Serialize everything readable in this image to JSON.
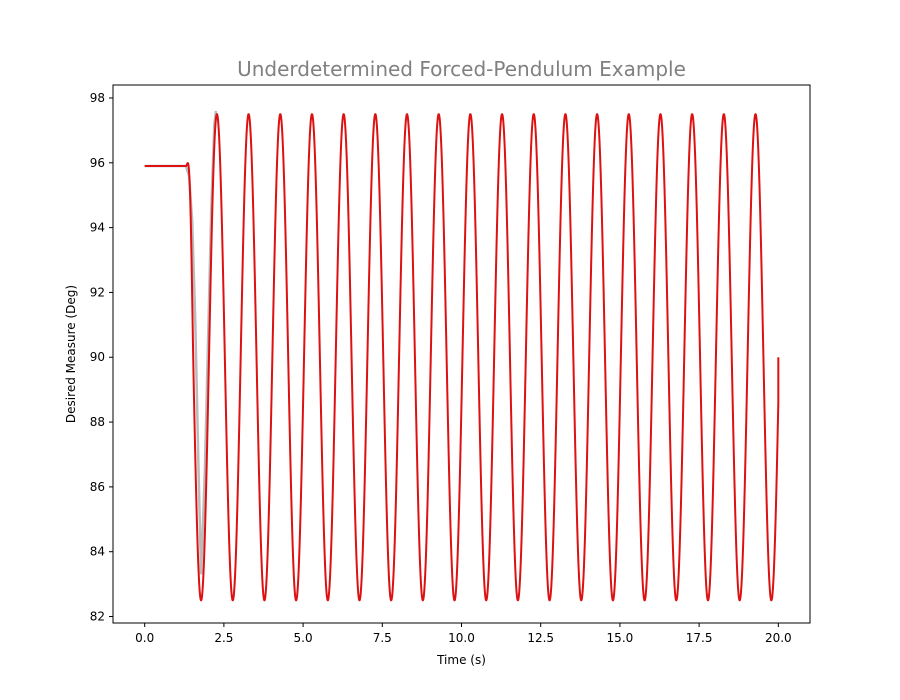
{
  "chart_data": {
    "type": "line",
    "title": "Underdetermined Forced-Pendulum Example",
    "xlabel": "Time (s)",
    "ylabel": "Desired Measure (Deg)",
    "xlim": [
      -1.0,
      21.0
    ],
    "ylim": [
      81.8,
      98.4
    ],
    "xticks": [
      0.0,
      2.5,
      5.0,
      7.5,
      10.0,
      12.5,
      15.0,
      17.5,
      20.0
    ],
    "xtick_labels": [
      "0.0",
      "2.5",
      "5.0",
      "7.5",
      "10.0",
      "12.5",
      "15.0",
      "17.5",
      "20.0"
    ],
    "yticks": [
      82,
      84,
      86,
      88,
      90,
      92,
      94,
      96,
      98
    ],
    "ytick_labels": [
      "82",
      "84",
      "86",
      "88",
      "90",
      "92",
      "94",
      "96",
      "98"
    ],
    "grid": false,
    "legend": false,
    "series": [
      {
        "color": "#aaaaaa",
        "points": [
          [
            0.0,
            95.9
          ],
          [
            1.3,
            95.9
          ],
          [
            1.4,
            95.6
          ],
          [
            1.5,
            94.2
          ],
          [
            1.6,
            91.0
          ],
          [
            1.7,
            86.5
          ],
          [
            1.78,
            83.3
          ],
          [
            1.9,
            86.5
          ],
          [
            2.0,
            90.5
          ],
          [
            2.1,
            94.5
          ],
          [
            2.2,
            97.2
          ],
          [
            2.25,
            97.6
          ]
        ]
      },
      {
        "color": "#dd1111",
        "initial_value": 95.9,
        "flat_until": 1.3,
        "transition_end": 1.55,
        "center": 90.0,
        "amplitude": 7.5,
        "first_trough": 1.78,
        "period": 1.0,
        "end_time": 20.0,
        "end_value": 90.0
      }
    ]
  }
}
